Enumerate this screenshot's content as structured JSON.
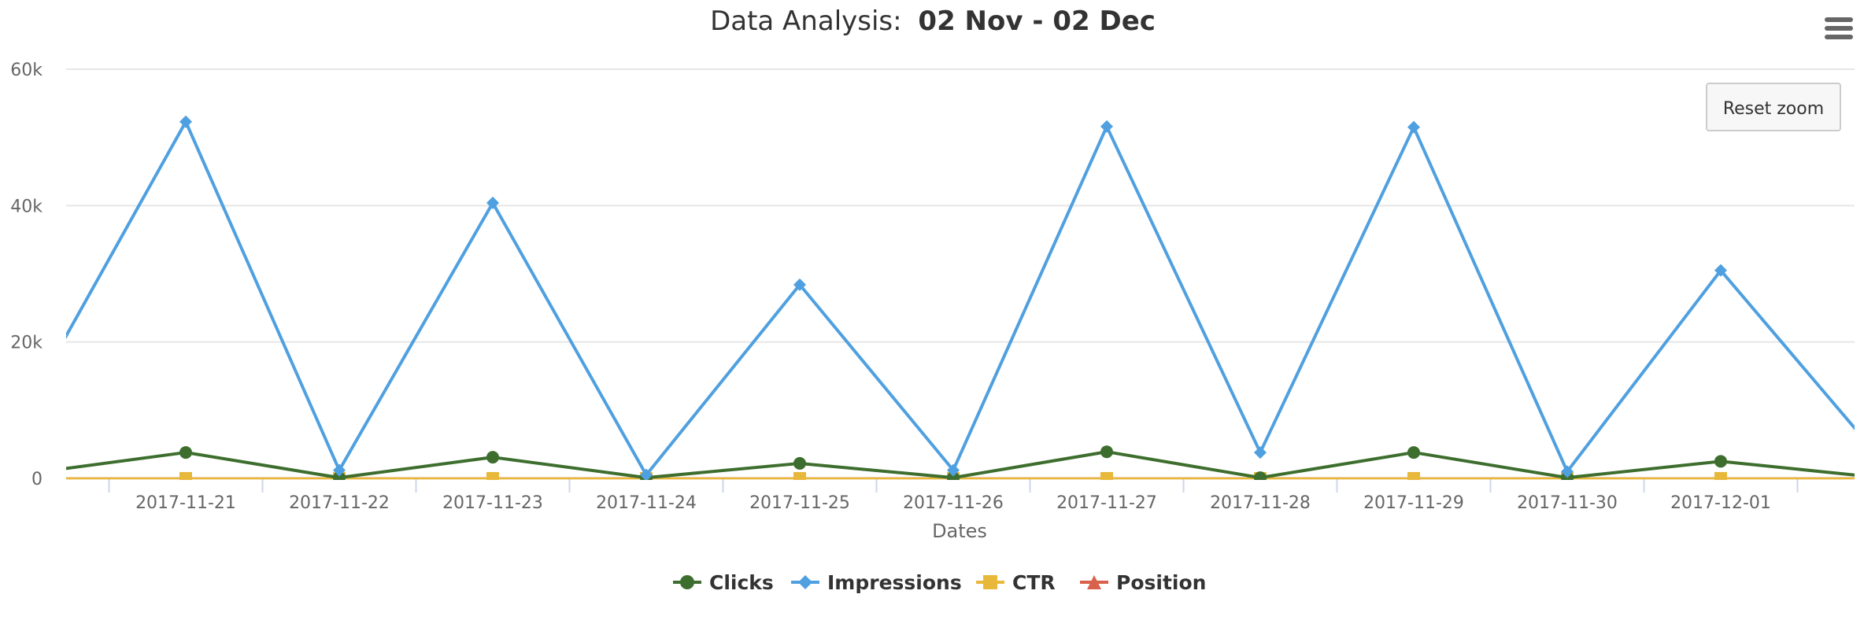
{
  "chart_data": {
    "type": "line",
    "title": "Data Analysis:",
    "title_range": "02 Nov - 02 Dec",
    "xlabel": "Dates",
    "ylabel": "",
    "x_ticks": [
      "2017-11-21",
      "2017-11-22",
      "2017-11-23",
      "2017-11-24",
      "2017-11-25",
      "2017-11-26",
      "2017-11-27",
      "2017-11-28",
      "2017-11-29",
      "2017-11-30",
      "2017-12-01"
    ],
    "y_ticks": [
      0,
      20000,
      40000,
      60000
    ],
    "y_tick_labels": [
      "0",
      "20k",
      "40k",
      "60k"
    ],
    "ylim": [
      0,
      60000
    ],
    "grid": true,
    "legend_position": "bottom-center",
    "reset_zoom_label": "Reset zoom",
    "series": [
      {
        "name": "Clicks",
        "color": "#3d6e2e",
        "marker": "circle",
        "x": [
          "2017-11-20",
          "2017-11-21",
          "2017-11-22",
          "2017-11-23",
          "2017-11-24",
          "2017-11-25",
          "2017-11-26",
          "2017-11-27",
          "2017-11-28",
          "2017-11-29",
          "2017-11-30",
          "2017-12-01",
          "2017-12-02"
        ],
        "values": [
          800,
          3800,
          100,
          3100,
          100,
          2200,
          100,
          3900,
          100,
          3800,
          100,
          2500,
          200
        ],
        "marker_hidden_first_last": true
      },
      {
        "name": "Impressions",
        "color": "#4fa0e0",
        "marker": "diamond",
        "x": [
          "2017-11-20",
          "2017-11-21",
          "2017-11-22",
          "2017-11-23",
          "2017-11-24",
          "2017-11-25",
          "2017-11-26",
          "2017-11-27",
          "2017-11-28",
          "2017-11-29",
          "2017-11-30",
          "2017-12-01",
          "2017-12-02"
        ],
        "values": [
          12000,
          52300,
          1200,
          40400,
          500,
          28400,
          1200,
          51600,
          3800,
          51500,
          1000,
          30500,
          4000
        ],
        "marker_hidden_first_last": true
      },
      {
        "name": "CTR",
        "color": "#e8b83a",
        "marker": "square",
        "x": [
          "2017-11-20",
          "2017-11-21",
          "2017-11-22",
          "2017-11-23",
          "2017-11-24",
          "2017-11-25",
          "2017-11-26",
          "2017-11-27",
          "2017-11-28",
          "2017-11-29",
          "2017-11-30",
          "2017-12-01",
          "2017-12-02"
        ],
        "values": [
          7,
          7,
          7,
          7,
          7,
          7,
          7,
          7,
          7,
          7,
          7,
          7,
          7
        ],
        "marker_hidden_first_last": true
      },
      {
        "name": "Position",
        "color": "#d9604a",
        "marker": "triangle",
        "x": [
          "2017-11-20",
          "2017-11-21",
          "2017-11-22",
          "2017-11-23",
          "2017-11-24",
          "2017-11-25",
          "2017-11-26",
          "2017-11-27",
          "2017-11-28",
          "2017-11-29",
          "2017-11-30",
          "2017-12-01",
          "2017-12-02"
        ],
        "values": [
          10,
          10,
          10,
          10,
          10,
          10,
          10,
          10,
          10,
          10,
          10,
          10,
          10
        ],
        "marker_hidden_first_last": true
      }
    ]
  },
  "menu_icon": "hamburger-menu-icon"
}
